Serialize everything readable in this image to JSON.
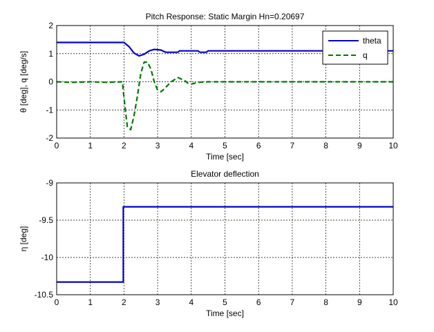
{
  "colors": {
    "theta": "#0000cc",
    "q": "#007700",
    "eta": "#0000cc",
    "grid": "#000000",
    "axes": "#000000"
  },
  "chart_data": [
    {
      "type": "line",
      "title": "Pitch Response: Static Margin Hn=0.20697",
      "xlabel": "Time [sec]",
      "ylabel": "θ [deg], q [deg/s]",
      "xlim": [
        0,
        10
      ],
      "ylim": [
        -2,
        2
      ],
      "xticks": [
        "0",
        "1",
        "2",
        "3",
        "4",
        "5",
        "6",
        "7",
        "8",
        "9",
        "10"
      ],
      "yticks": [
        "-2",
        "-1",
        "0",
        "1",
        "2"
      ],
      "grid": true,
      "legend": {
        "position": "top-right",
        "entries": [
          "theta",
          "q"
        ]
      },
      "series": [
        {
          "name": "theta",
          "style": "solid",
          "x": [
            0,
            2.0,
            2.15,
            2.3,
            2.45,
            2.6,
            2.75,
            2.9,
            3.0,
            3.1,
            3.2,
            3.25,
            3.6,
            3.65,
            4.2,
            4.25,
            4.45,
            4.5,
            10
          ],
          "y": [
            1.4,
            1.4,
            1.25,
            1.02,
            0.92,
            0.98,
            1.1,
            1.15,
            1.14,
            1.13,
            1.07,
            1.05,
            1.05,
            1.1,
            1.1,
            1.05,
            1.05,
            1.1,
            1.1
          ]
        },
        {
          "name": "q",
          "style": "dashed",
          "x": [
            0,
            0.5,
            1.0,
            1.5,
            1.95,
            2.05,
            2.1,
            2.2,
            2.3,
            2.4,
            2.5,
            2.6,
            2.7,
            2.8,
            2.9,
            3.0,
            3.1,
            3.2,
            3.4,
            3.6,
            3.8,
            3.9,
            4.0,
            4.2,
            4.5,
            10
          ],
          "y": [
            0,
            -0.02,
            0,
            -0.02,
            0,
            -1.1,
            -1.6,
            -1.7,
            -1.2,
            -0.5,
            0.3,
            0.7,
            0.7,
            0.45,
            0.0,
            -0.3,
            -0.35,
            -0.25,
            0.0,
            0.15,
            0.05,
            -0.05,
            -0.08,
            -0.02,
            0,
            0
          ]
        }
      ]
    },
    {
      "type": "line",
      "title": "Elevator deflection",
      "xlabel": "Time [sec]",
      "ylabel": "η [deg]",
      "xlim": [
        0,
        10
      ],
      "ylim": [
        -10.5,
        -9
      ],
      "xticks": [
        "0",
        "1",
        "2",
        "3",
        "4",
        "5",
        "6",
        "7",
        "8",
        "9",
        "10"
      ],
      "yticks": [
        "-10.5",
        "-10",
        "-9.5",
        "-9"
      ],
      "grid": true,
      "series": [
        {
          "style": "solid",
          "x": [
            0,
            1.98,
            1.98,
            10
          ],
          "y": [
            -10.33,
            -10.33,
            -9.32,
            -9.32
          ]
        }
      ]
    }
  ]
}
